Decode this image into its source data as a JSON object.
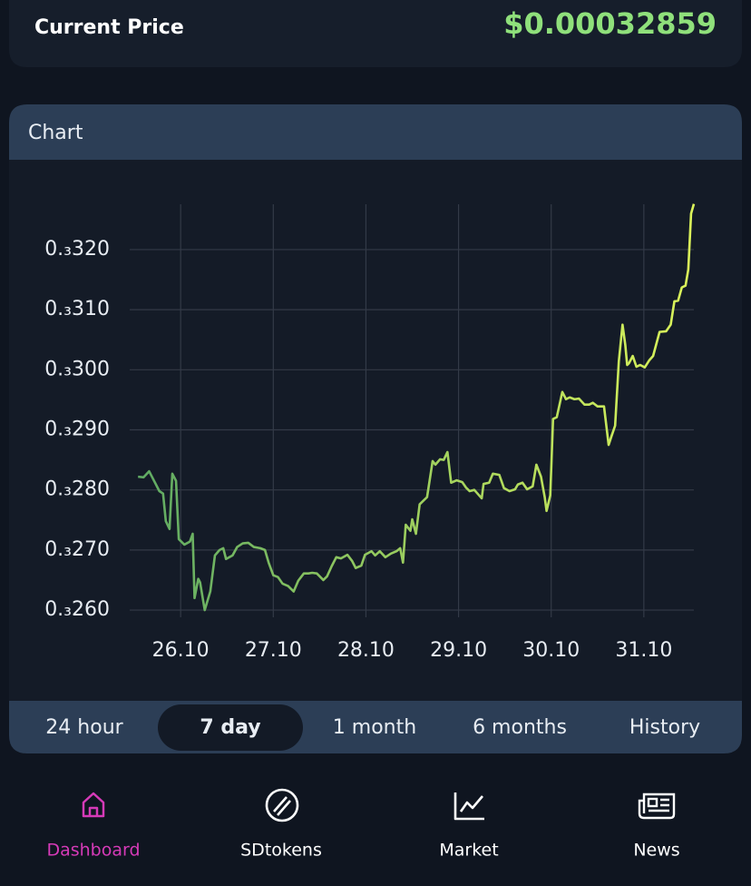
{
  "header": {
    "label": "Current Price",
    "price": "$0.00032859"
  },
  "chart_panel": {
    "title": "Chart"
  },
  "chart_data": {
    "type": "line",
    "x": [
      25.54,
      25.6,
      25.66,
      25.72,
      25.77,
      25.81,
      25.84,
      25.88,
      25.91,
      25.95,
      25.98,
      26.04,
      26.1,
      26.13,
      26.15,
      26.19,
      26.21,
      26.26,
      26.32,
      26.37,
      26.42,
      26.46,
      26.49,
      26.56,
      26.61,
      26.67,
      26.73,
      26.79,
      26.86,
      26.91,
      26.95,
      27.0,
      27.05,
      27.1,
      27.16,
      27.22,
      27.27,
      27.33,
      27.38,
      27.42,
      27.47,
      27.54,
      27.58,
      27.63,
      27.68,
      27.73,
      27.8,
      27.85,
      27.89,
      27.95,
      27.99,
      28.06,
      28.1,
      28.15,
      28.21,
      28.27,
      28.33,
      28.37,
      28.4,
      28.43,
      28.48,
      28.5,
      28.54,
      28.58,
      28.62,
      28.66,
      28.72,
      28.75,
      28.8,
      28.84,
      28.88,
      28.92,
      28.98,
      29.04,
      29.08,
      29.12,
      29.17,
      29.25,
      29.27,
      29.33,
      29.37,
      29.44,
      29.49,
      29.55,
      29.61,
      29.64,
      29.69,
      29.74,
      29.8,
      29.84,
      29.89,
      29.93,
      29.95,
      29.99,
      30.02,
      30.06,
      30.12,
      30.16,
      30.2,
      30.25,
      30.3,
      30.36,
      30.41,
      30.45,
      30.5,
      30.57,
      30.62,
      30.65,
      30.69,
      30.73,
      30.77,
      30.8,
      30.82,
      30.84,
      30.88,
      30.92,
      30.96,
      31.01,
      31.06,
      31.1,
      31.17,
      31.24,
      31.29,
      31.33,
      31.37,
      31.41,
      31.45,
      31.48,
      31.51,
      31.54
    ],
    "values": [
      0.0002822,
      0.0002821,
      0.0002831,
      0.0002813,
      0.0002798,
      0.0002794,
      0.0002748,
      0.0002735,
      0.0002827,
      0.0002815,
      0.0002718,
      0.0002709,
      0.0002714,
      0.0002727,
      0.000262,
      0.0002652,
      0.0002646,
      0.00026,
      0.0002631,
      0.0002691,
      0.00027,
      0.0002703,
      0.0002685,
      0.0002691,
      0.0002705,
      0.0002711,
      0.0002712,
      0.0002705,
      0.0002703,
      0.00027,
      0.0002679,
      0.0002658,
      0.0002655,
      0.0002644,
      0.000264,
      0.0002631,
      0.0002649,
      0.0002661,
      0.0002661,
      0.0002662,
      0.0002661,
      0.000265,
      0.0002656,
      0.0002673,
      0.0002688,
      0.0002686,
      0.0002692,
      0.0002682,
      0.000267,
      0.0002674,
      0.0002692,
      0.0002698,
      0.0002691,
      0.0002698,
      0.0002688,
      0.0002694,
      0.0002698,
      0.0002703,
      0.0002679,
      0.0002742,
      0.0002732,
      0.0002751,
      0.0002727,
      0.0002776,
      0.0002782,
      0.0002788,
      0.0002848,
      0.0002842,
      0.0002851,
      0.000285,
      0.0002863,
      0.0002812,
      0.0002816,
      0.0002813,
      0.0002804,
      0.0002798,
      0.00028,
      0.0002786,
      0.000281,
      0.0002812,
      0.0002827,
      0.0002825,
      0.0002803,
      0.0002798,
      0.0002801,
      0.0002809,
      0.0002812,
      0.0002801,
      0.0002806,
      0.0002842,
      0.0002822,
      0.0002788,
      0.0002765,
      0.0002791,
      0.0002918,
      0.0002921,
      0.0002963,
      0.0002951,
      0.0002954,
      0.0002951,
      0.0002952,
      0.0002942,
      0.0002942,
      0.0002945,
      0.0002939,
      0.0002939,
      0.0002875,
      0.0002889,
      0.0002907,
      0.0003014,
      0.0003075,
      0.0003041,
      0.0003008,
      0.0003011,
      0.0003023,
      0.0003005,
      0.0003008,
      0.0003004,
      0.0003016,
      0.0003023,
      0.0003063,
      0.0003064,
      0.0003075,
      0.0003114,
      0.0003115,
      0.0003137,
      0.000314,
      0.0003167,
      0.000326,
      0.0003276
    ],
    "xlim": [
      25.45,
      31.54
    ],
    "ylim": [
      0.0002588,
      0.000328
    ],
    "xticks": [
      {
        "value": 26,
        "label": "26.10"
      },
      {
        "value": 27,
        "label": "27.10"
      },
      {
        "value": 28,
        "label": "28.10"
      },
      {
        "value": 29,
        "label": "29.10"
      },
      {
        "value": 30,
        "label": "30.10"
      },
      {
        "value": 31,
        "label": "31.10"
      }
    ],
    "yticks": [
      {
        "value": 0.00026,
        "label": "0.₃260"
      },
      {
        "value": 0.00027,
        "label": "0.₃270"
      },
      {
        "value": 0.00028,
        "label": "0.₃280"
      },
      {
        "value": 0.00029,
        "label": "0.₃290"
      },
      {
        "value": 0.0003,
        "label": "0.₃300"
      },
      {
        "value": 0.00031,
        "label": "0.₃310"
      },
      {
        "value": 0.00032,
        "label": "0.₃320"
      }
    ],
    "grid": true,
    "line_gradient": [
      "#5faa63",
      "#dcf45a"
    ]
  },
  "ranges": {
    "items": [
      "24 hour",
      "7 day",
      "1 month",
      "6 months",
      "History"
    ],
    "selected": 1
  },
  "nav": {
    "items": [
      "Dashboard",
      "SDtokens",
      "Market",
      "News"
    ],
    "active": 0
  }
}
